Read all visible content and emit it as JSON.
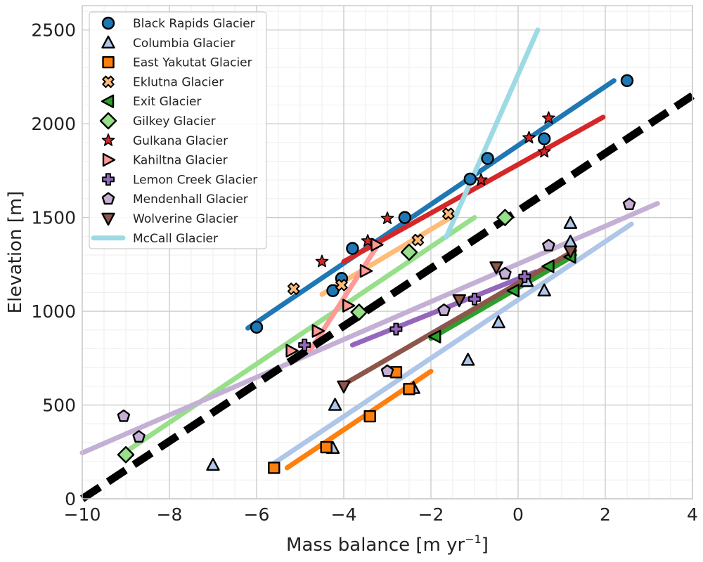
{
  "chart_data": {
    "type": "scatter",
    "xlabel": "Mass balance [m yr",
    "xlabel_sup": "−1",
    "xlabel_end": "]",
    "ylabel": "Elevation [m]",
    "xlim": [
      -10,
      4
    ],
    "ylim": [
      0,
      2630
    ],
    "xticks": [
      -10,
      -8,
      -6,
      -4,
      -2,
      0,
      2,
      4
    ],
    "xtick_labels": [
      "−10",
      "−8",
      "−6",
      "−4",
      "−2",
      "0",
      "2",
      "4"
    ],
    "yticks": [
      0,
      500,
      1000,
      1500,
      2000,
      2500
    ],
    "ytick_labels": [
      "0",
      "500",
      "1000",
      "1500",
      "2000",
      "2500"
    ],
    "grid": true,
    "legend_position": "top-left",
    "reference_line": {
      "x": [
        -10,
        4
      ],
      "y": [
        0,
        2150
      ],
      "color": "#000000",
      "style": "dashed"
    },
    "series": [
      {
        "name": "Black Rapids Glacier",
        "marker": "circle",
        "color": "#1f77b4",
        "points": [
          [
            -6.0,
            915
          ],
          [
            -4.25,
            1110
          ],
          [
            -4.05,
            1175
          ],
          [
            -3.8,
            1335
          ],
          [
            -2.6,
            1500
          ],
          [
            -1.1,
            1705
          ],
          [
            -0.7,
            1815
          ],
          [
            0.6,
            1920
          ],
          [
            2.5,
            2230
          ]
        ],
        "fit": [
          [
            -6.2,
            910
          ],
          [
            2.2,
            2230
          ]
        ]
      },
      {
        "name": "Columbia Glacier",
        "marker": "triangle-up",
        "color": "#aec7e8",
        "points": [
          [
            -7.0,
            180
          ],
          [
            -4.25,
            270
          ],
          [
            -4.2,
            500
          ],
          [
            -2.4,
            590
          ],
          [
            -1.15,
            740
          ],
          [
            -0.45,
            940
          ],
          [
            0.2,
            1160
          ],
          [
            0.6,
            1110
          ],
          [
            1.2,
            1370
          ],
          [
            1.2,
            1470
          ]
        ],
        "fit": [
          [
            -5.6,
            190
          ],
          [
            2.6,
            1465
          ]
        ]
      },
      {
        "name": "East Yakutat Glacier",
        "marker": "square",
        "color": "#ff7f0e",
        "points": [
          [
            -5.6,
            165
          ],
          [
            -4.4,
            275
          ],
          [
            -3.4,
            440
          ],
          [
            -2.5,
            585
          ],
          [
            -2.8,
            675
          ]
        ],
        "fit": [
          [
            -5.3,
            165
          ],
          [
            -2.0,
            680
          ]
        ]
      },
      {
        "name": "Eklutna Glacier",
        "marker": "x-bold",
        "color": "#ffbb78",
        "points": [
          [
            -5.15,
            1120
          ],
          [
            -4.05,
            1140
          ],
          [
            -2.3,
            1380
          ],
          [
            -1.6,
            1520
          ]
        ],
        "fit": [
          [
            -4.5,
            1090
          ],
          [
            -1.4,
            1520
          ]
        ]
      },
      {
        "name": "Exit Glacier",
        "marker": "triangle-left",
        "color": "#2ca02c",
        "points": [
          [
            -1.9,
            865
          ],
          [
            -0.1,
            1110
          ],
          [
            0.7,
            1240
          ],
          [
            1.2,
            1290
          ]
        ],
        "fit": [
          [
            -2.0,
            855
          ],
          [
            1.3,
            1300
          ]
        ]
      },
      {
        "name": "Gilkey Glacier",
        "marker": "diamond",
        "color": "#98df8a",
        "points": [
          [
            -9.0,
            235
          ],
          [
            -3.65,
            995
          ],
          [
            -2.5,
            1315
          ],
          [
            -0.3,
            1500
          ]
        ],
        "fit": [
          [
            -9.1,
            235
          ],
          [
            -1.0,
            1500
          ]
        ]
      },
      {
        "name": "Gulkana Glacier",
        "marker": "star",
        "color": "#d62728",
        "points": [
          [
            -4.5,
            1265
          ],
          [
            -3.45,
            1375
          ],
          [
            -3.0,
            1495
          ],
          [
            -0.85,
            1700
          ],
          [
            0.25,
            1925
          ],
          [
            0.6,
            1850
          ],
          [
            0.7,
            2030
          ]
        ],
        "fit": [
          [
            -4.0,
            1265
          ],
          [
            1.95,
            2035
          ]
        ]
      },
      {
        "name": "Kahiltna Glacier",
        "marker": "triangle-right",
        "color": "#ff9896",
        "points": [
          [
            -5.2,
            790
          ],
          [
            -4.6,
            895
          ],
          [
            -3.9,
            1030
          ],
          [
            -3.5,
            1215
          ],
          [
            -3.25,
            1355
          ]
        ],
        "fit": [
          [
            -4.8,
            780
          ],
          [
            -3.2,
            1360
          ]
        ]
      },
      {
        "name": "Lemon Creek Glacier",
        "marker": "plus",
        "color": "#9467bd",
        "points": [
          [
            -4.9,
            820
          ],
          [
            -2.8,
            905
          ],
          [
            -1.0,
            1065
          ],
          [
            0.15,
            1185
          ]
        ],
        "fit": [
          [
            -3.8,
            820
          ],
          [
            0.4,
            1210
          ]
        ]
      },
      {
        "name": "Mendenhall Glacier",
        "marker": "pentagon",
        "color": "#c5b0d5",
        "points": [
          [
            -9.05,
            440
          ],
          [
            -8.7,
            330
          ],
          [
            -3.0,
            680
          ],
          [
            -1.7,
            1005
          ],
          [
            -0.3,
            1200
          ],
          [
            0.7,
            1350
          ],
          [
            2.55,
            1570
          ]
        ],
        "fit": [
          [
            -10,
            245
          ],
          [
            3.2,
            1575
          ]
        ]
      },
      {
        "name": "Wolverine Glacier",
        "marker": "triangle-down",
        "color": "#8c564b",
        "points": [
          [
            -4.0,
            600
          ],
          [
            -1.35,
            1060
          ],
          [
            -0.5,
            1235
          ],
          [
            1.2,
            1320
          ]
        ],
        "fit": [
          [
            -4.0,
            610
          ],
          [
            1.3,
            1325
          ]
        ]
      },
      {
        "name": "McCall Glacier",
        "marker": "line",
        "color": "#9edae5",
        "points": [],
        "fit": [
          [
            -1.65,
            1395
          ],
          [
            0.45,
            2500
          ]
        ]
      }
    ]
  }
}
